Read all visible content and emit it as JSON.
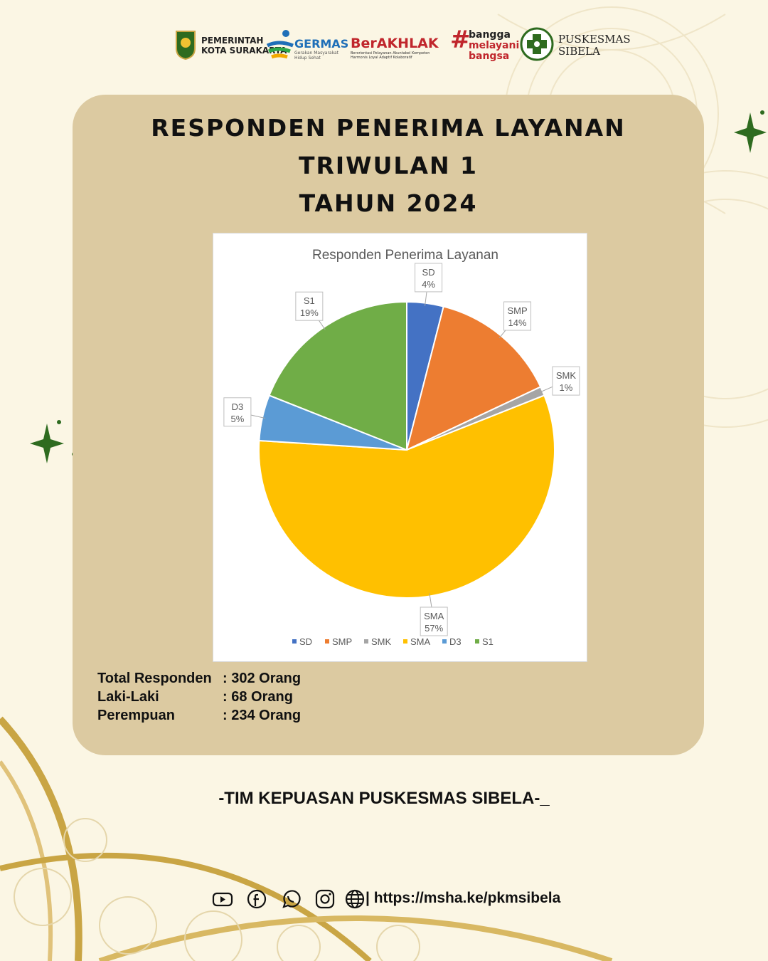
{
  "header": {
    "logos": [
      {
        "name": "pemerintah-kota-surakarta",
        "line1": "PEMERINTAH",
        "line2": "KOTA SURAKARTA"
      },
      {
        "name": "germas",
        "line1": "GERMAS",
        "line2": "Gerakan Masyarakat",
        "line3": "Hidup Sehat"
      },
      {
        "name": "berakhlak",
        "line1": "BerAKHLAK",
        "line2": "Berorientasi Pelayanan Akuntabel Kompeten",
        "line3": "Harmonis Loyal Adaptif Kolaboratif"
      },
      {
        "name": "bangga-melayani-bangsa",
        "line1": "bangga",
        "line2": "melayani",
        "line3": "bangsa"
      },
      {
        "name": "puskesmas-sibela",
        "line1": "PUSKESMAS",
        "line2": "SIBELA"
      }
    ]
  },
  "title": {
    "line1": "RESPONDEN PENERIMA LAYANAN",
    "line2": "TRIWULAN 1",
    "line3": "TAHUN 2024"
  },
  "chart_data": {
    "type": "pie",
    "title": "Responden Penerima Layanan",
    "legend_position": "bottom",
    "slices": [
      {
        "label": "SD",
        "value": 4,
        "display": "4%",
        "color": "#4472c4"
      },
      {
        "label": "SMP",
        "value": 14,
        "display": "14%",
        "color": "#ed7d31"
      },
      {
        "label": "SMK",
        "value": 1,
        "display": "1%",
        "color": "#a5a5a5"
      },
      {
        "label": "SMA",
        "value": 57,
        "display": "57%",
        "color": "#ffc000"
      },
      {
        "label": "D3",
        "value": 5,
        "display": "5%",
        "color": "#5b9bd5"
      },
      {
        "label": "S1",
        "value": 19,
        "display": "19%",
        "color": "#70ad47"
      }
    ]
  },
  "stats": [
    {
      "label": "Total Responden",
      "value": ": 302 Orang"
    },
    {
      "label": "Laki-Laki",
      "value": ": 68 Orang"
    },
    {
      "label": "Perempuan",
      "value": ": 234 Orang"
    }
  ],
  "footer": {
    "team": "-TIM KEPUASAN PUSKESMAS SIBELA-_",
    "url": "| https://msha.ke/pkmsibela",
    "icons": [
      "youtube-icon",
      "facebook-icon",
      "whatsapp-icon",
      "instagram-icon",
      "globe-icon"
    ]
  },
  "colors": {
    "background": "#fbf6e4",
    "card": "#dccaa1",
    "accent_green": "#2e6b1f",
    "gold": "#c9a544"
  }
}
